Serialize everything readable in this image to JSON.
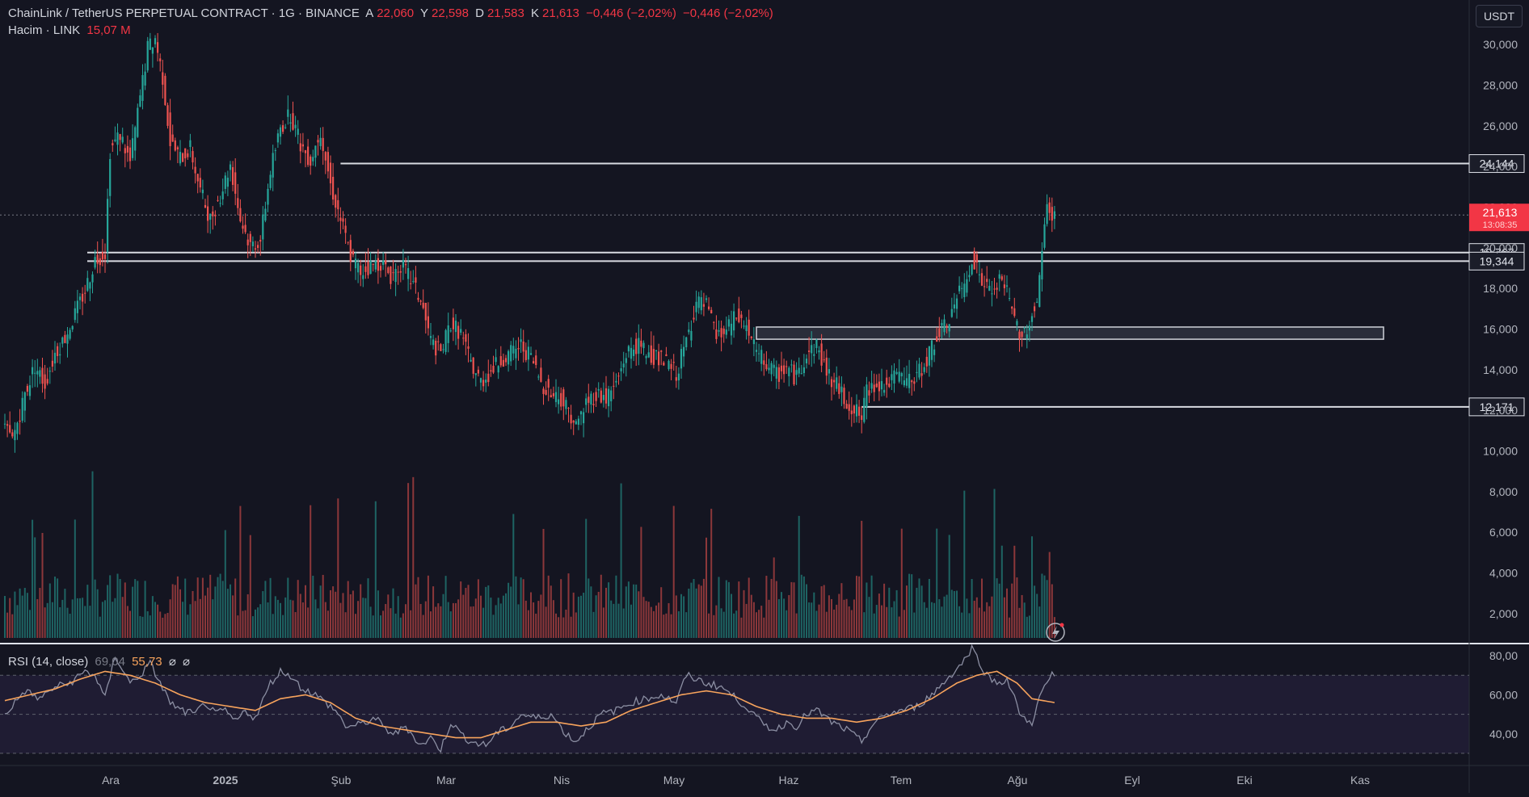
{
  "header": {
    "symbol": "ChainLink / TetherUS PERPETUAL CONTRACT · 1G · BINANCE",
    "o_label": "A",
    "o_val": "22,060",
    "h_label": "Y",
    "h_val": "22,598",
    "l_label": "D",
    "l_val": "21,583",
    "c_label": "K",
    "c_val": "21,613",
    "change": "−0,446 (−2,02%)",
    "change2": "−0,446 (−2,02%)",
    "volume_label": "Hacim · LINK",
    "volume_val": "15,07 M"
  },
  "unit_button": "USDT",
  "rsi_header": {
    "label": "RSI (14, close)",
    "rsi": "69,04",
    "ma": "55,73",
    "s1": "⌀",
    "s2": "⌀"
  },
  "colors": {
    "bg": "#141521",
    "up": "#26a69a",
    "down": "#ef5350",
    "grid": "#2a2e39",
    "rsi_ma": "#f7a35c",
    "rsi_line": "#8c8fa3",
    "price_tag": "#f23645"
  },
  "chart_data": {
    "type": "candlestick",
    "price_axis": {
      "min": 1,
      "max": 31,
      "ticks": [
        "30,000",
        "28,000",
        "26,000",
        "24,000",
        "22,000",
        "20,000",
        "18,000",
        "16,000",
        "14,000",
        "12,000",
        "10,000",
        "8,000",
        "6,000",
        "4,000",
        "2,000"
      ],
      "tick_values": [
        30,
        28,
        26,
        24,
        22,
        20,
        18,
        16,
        14,
        12,
        10,
        8,
        6,
        4,
        2
      ]
    },
    "rsi_axis": {
      "min": 25,
      "max": 85,
      "ticks": [
        "80,00",
        "60,00",
        "40,00"
      ],
      "tick_values": [
        80,
        60,
        40
      ],
      "bands": [
        70,
        50,
        30
      ]
    },
    "x_labels": [
      "Ara",
      "2025",
      "Şub",
      "Mar",
      "Nis",
      "May",
      "Haz",
      "Tem",
      "Ağu",
      "Eyl",
      "Eki",
      "Kas"
    ],
    "levels": [
      {
        "label": "24,144",
        "value": 24.144
      },
      {
        "label": "19,767",
        "value": 19.767
      },
      {
        "label": "19,344",
        "value": 19.344
      },
      {
        "label": "12,171",
        "value": 12.171
      }
    ],
    "last_price": {
      "label": "21,613",
      "sub": "13:08:35",
      "value": 21.613
    },
    "zone": {
      "top": 16.1,
      "bottom": 15.5
    },
    "price_anchors": [
      [
        0,
        11.1
      ],
      [
        3,
        10.5
      ],
      [
        8,
        12.8
      ],
      [
        12,
        14.2
      ],
      [
        16,
        13.3
      ],
      [
        20,
        14.8
      ],
      [
        24,
        15.6
      ],
      [
        28,
        16.7
      ],
      [
        32,
        17.9
      ],
      [
        36,
        19.4
      ],
      [
        40,
        19.8
      ],
      [
        42,
        24.8
      ],
      [
        46,
        25.6
      ],
      [
        50,
        24.2
      ],
      [
        54,
        27.4
      ],
      [
        57,
        29.8
      ],
      [
        60,
        30.3
      ],
      [
        63,
        28.4
      ],
      [
        66,
        25.2
      ],
      [
        70,
        24.4
      ],
      [
        74,
        24.9
      ],
      [
        78,
        22.8
      ],
      [
        82,
        21.4
      ],
      [
        86,
        22.6
      ],
      [
        90,
        24.1
      ],
      [
        94,
        21.4
      ],
      [
        98,
        20.1
      ],
      [
        102,
        20.4
      ],
      [
        106,
        23.8
      ],
      [
        110,
        25.9
      ],
      [
        114,
        26.6
      ],
      [
        118,
        25.1
      ],
      [
        122,
        24.3
      ],
      [
        126,
        25.8
      ],
      [
        130,
        23.1
      ],
      [
        134,
        21.4
      ],
      [
        138,
        19.6
      ],
      [
        142,
        18.8
      ],
      [
        146,
        19.1
      ],
      [
        150,
        19.3
      ],
      [
        154,
        18.6
      ],
      [
        158,
        19.2
      ],
      [
        162,
        18.4
      ],
      [
        166,
        17.4
      ],
      [
        170,
        15.4
      ],
      [
        174,
        14.8
      ],
      [
        178,
        16.3
      ],
      [
        182,
        15.8
      ],
      [
        186,
        14.3
      ],
      [
        190,
        13.4
      ],
      [
        194,
        13.9
      ],
      [
        198,
        14.5
      ],
      [
        202,
        14.8
      ],
      [
        206,
        15.2
      ],
      [
        210,
        14.6
      ],
      [
        214,
        13.4
      ],
      [
        218,
        12.8
      ],
      [
        222,
        12.6
      ],
      [
        226,
        11.8
      ],
      [
        228,
        11.2
      ],
      [
        232,
        12.4
      ],
      [
        236,
        12.8
      ],
      [
        240,
        12.6
      ],
      [
        244,
        13.3
      ],
      [
        248,
        14.8
      ],
      [
        252,
        15.2
      ],
      [
        256,
        14.9
      ],
      [
        260,
        14.6
      ],
      [
        264,
        14.3
      ],
      [
        268,
        13.8
      ],
      [
        272,
        15.4
      ],
      [
        276,
        17.3
      ],
      [
        280,
        17.1
      ],
      [
        284,
        15.6
      ],
      [
        288,
        15.9
      ],
      [
        292,
        16.6
      ],
      [
        296,
        16.1
      ],
      [
        300,
        14.8
      ],
      [
        304,
        14.3
      ],
      [
        308,
        13.7
      ],
      [
        312,
        14.1
      ],
      [
        316,
        13.6
      ],
      [
        320,
        14.8
      ],
      [
        324,
        15.2
      ],
      [
        328,
        13.9
      ],
      [
        332,
        13.2
      ],
      [
        336,
        12.4
      ],
      [
        340,
        11.9
      ],
      [
        342,
        11.6
      ],
      [
        344,
        12.9
      ],
      [
        348,
        13.4
      ],
      [
        352,
        13.2
      ],
      [
        356,
        13.7
      ],
      [
        360,
        13.4
      ],
      [
        364,
        13.6
      ],
      [
        368,
        14.6
      ],
      [
        372,
        15.6
      ],
      [
        376,
        16.2
      ],
      [
        380,
        17.5
      ],
      [
        384,
        18.4
      ],
      [
        386,
        19.6
      ],
      [
        390,
        18.3
      ],
      [
        394,
        17.7
      ],
      [
        398,
        18.6
      ],
      [
        402,
        16.8
      ],
      [
        406,
        15.6
      ],
      [
        410,
        16.7
      ],
      [
        412,
        17.4
      ],
      [
        414,
        19.8
      ],
      [
        416,
        21.9
      ],
      [
        419,
        21.6
      ]
    ],
    "rsi_anchors": [
      [
        0,
        50
      ],
      [
        8,
        62
      ],
      [
        14,
        58
      ],
      [
        20,
        64
      ],
      [
        26,
        66
      ],
      [
        32,
        72
      ],
      [
        36,
        70
      ],
      [
        40,
        58
      ],
      [
        44,
        80
      ],
      [
        50,
        66
      ],
      [
        54,
        70
      ],
      [
        58,
        76
      ],
      [
        62,
        66
      ],
      [
        66,
        56
      ],
      [
        70,
        52
      ],
      [
        76,
        50
      ],
      [
        80,
        56
      ],
      [
        84,
        50
      ],
      [
        88,
        52
      ],
      [
        92,
        46
      ],
      [
        96,
        52
      ],
      [
        100,
        48
      ],
      [
        106,
        66
      ],
      [
        110,
        72
      ],
      [
        114,
        70
      ],
      [
        118,
        64
      ],
      [
        124,
        60
      ],
      [
        128,
        56
      ],
      [
        132,
        52
      ],
      [
        136,
        44
      ],
      [
        140,
        44
      ],
      [
        144,
        46
      ],
      [
        148,
        48
      ],
      [
        152,
        42
      ],
      [
        156,
        40
      ],
      [
        160,
        44
      ],
      [
        166,
        34
      ],
      [
        170,
        38
      ],
      [
        174,
        32
      ],
      [
        178,
        46
      ],
      [
        182,
        40
      ],
      [
        186,
        36
      ],
      [
        192,
        34
      ],
      [
        196,
        40
      ],
      [
        202,
        44
      ],
      [
        206,
        50
      ],
      [
        212,
        48
      ],
      [
        218,
        50
      ],
      [
        224,
        40
      ],
      [
        228,
        36
      ],
      [
        232,
        42
      ],
      [
        238,
        50
      ],
      [
        244,
        52
      ],
      [
        250,
        56
      ],
      [
        256,
        58
      ],
      [
        262,
        60
      ],
      [
        268,
        56
      ],
      [
        272,
        70
      ],
      [
        276,
        68
      ],
      [
        280,
        66
      ],
      [
        286,
        64
      ],
      [
        292,
        58
      ],
      [
        296,
        54
      ],
      [
        300,
        48
      ],
      [
        304,
        44
      ],
      [
        308,
        42
      ],
      [
        312,
        46
      ],
      [
        316,
        44
      ],
      [
        320,
        50
      ],
      [
        324,
        52
      ],
      [
        330,
        46
      ],
      [
        336,
        42
      ],
      [
        342,
        36
      ],
      [
        346,
        44
      ],
      [
        352,
        50
      ],
      [
        358,
        52
      ],
      [
        364,
        54
      ],
      [
        370,
        60
      ],
      [
        376,
        68
      ],
      [
        382,
        76
      ],
      [
        386,
        84
      ],
      [
        392,
        70
      ],
      [
        396,
        66
      ],
      [
        400,
        68
      ],
      [
        406,
        48
      ],
      [
        410,
        46
      ],
      [
        414,
        62
      ],
      [
        418,
        70
      ],
      [
        419,
        69
      ]
    ],
    "rsi_ma_anchors": [
      [
        0,
        57
      ],
      [
        10,
        60
      ],
      [
        20,
        63
      ],
      [
        30,
        68
      ],
      [
        40,
        72
      ],
      [
        50,
        70
      ],
      [
        60,
        66
      ],
      [
        70,
        60
      ],
      [
        80,
        56
      ],
      [
        90,
        54
      ],
      [
        100,
        52
      ],
      [
        110,
        58
      ],
      [
        120,
        60
      ],
      [
        130,
        56
      ],
      [
        140,
        48
      ],
      [
        150,
        44
      ],
      [
        160,
        42
      ],
      [
        170,
        40
      ],
      [
        180,
        38
      ],
      [
        190,
        38
      ],
      [
        200,
        42
      ],
      [
        210,
        46
      ],
      [
        220,
        46
      ],
      [
        230,
        44
      ],
      [
        240,
        46
      ],
      [
        250,
        52
      ],
      [
        260,
        56
      ],
      [
        270,
        60
      ],
      [
        280,
        62
      ],
      [
        290,
        60
      ],
      [
        300,
        54
      ],
      [
        310,
        50
      ],
      [
        320,
        48
      ],
      [
        330,
        48
      ],
      [
        340,
        46
      ],
      [
        350,
        48
      ],
      [
        360,
        52
      ],
      [
        370,
        58
      ],
      [
        380,
        66
      ],
      [
        388,
        70
      ],
      [
        396,
        72
      ],
      [
        404,
        66
      ],
      [
        410,
        58
      ],
      [
        419,
        56
      ]
    ],
    "volume_axis": {
      "min": 1,
      "max": 31
    }
  }
}
